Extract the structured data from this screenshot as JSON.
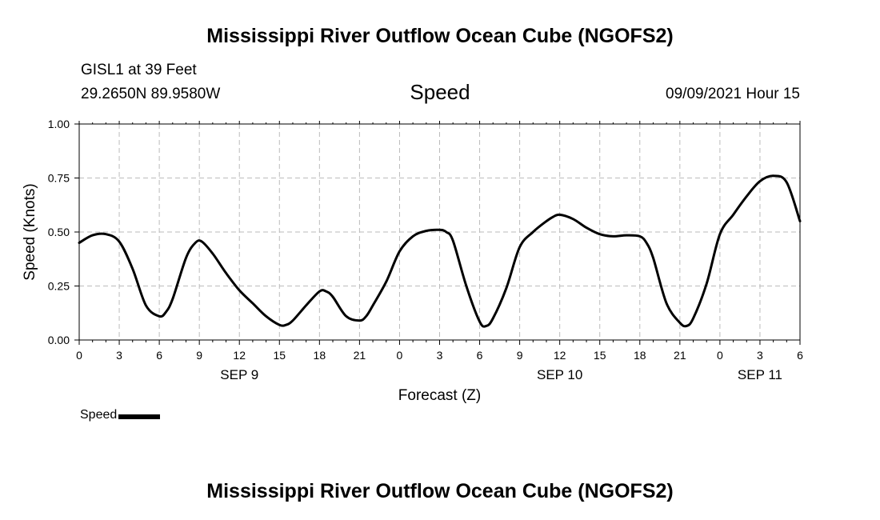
{
  "header": {
    "title": "Mississippi River Outflow Ocean Cube (NGOFS2)",
    "station": "GISL1 at 39 Feet",
    "coordinates": "29.2650N  89.9580W",
    "panel_title": "Speed",
    "datetime": "09/09/2021 Hour 15"
  },
  "footer": {
    "title": "Mississippi River Outflow Ocean Cube (NGOFS2)"
  },
  "legend": {
    "label": "Speed",
    "color": "#000000"
  },
  "chart_data": {
    "type": "line",
    "title": "Speed",
    "xlabel": "Forecast (Z)",
    "ylabel": "Speed (Knots)",
    "xlim": [
      0,
      54
    ],
    "ylim": [
      0,
      1
    ],
    "grid": true,
    "x_tick_values": [
      0,
      3,
      6,
      9,
      12,
      15,
      18,
      21,
      24,
      27,
      30,
      33,
      36,
      39,
      42,
      45,
      48,
      51,
      54
    ],
    "x_tick_labels": [
      "0",
      "3",
      "6",
      "9",
      "12",
      "15",
      "18",
      "21",
      "0",
      "3",
      "6",
      "9",
      "12",
      "15",
      "18",
      "21",
      "0",
      "3",
      "6"
    ],
    "y_tick_values": [
      0,
      0.25,
      0.5,
      0.75,
      1.0
    ],
    "y_tick_labels": [
      "0.00",
      "0.25",
      "0.50",
      "0.75",
      "1.00"
    ],
    "day_labels": [
      {
        "label": "SEP 9",
        "hour": 12
      },
      {
        "label": "SEP 10",
        "hour": 36
      },
      {
        "label": "SEP 11",
        "hour": 51
      }
    ],
    "series": [
      {
        "name": "Speed",
        "color": "#000000",
        "x": [
          0,
          1,
          2,
          3,
          4,
          5,
          6,
          6.5,
          7,
          8,
          8.7,
          9.2,
          10,
          11,
          12,
          13,
          14,
          15,
          15.5,
          16,
          17,
          18,
          18.5,
          19,
          20,
          21,
          21.5,
          22,
          23,
          24,
          25,
          26,
          27,
          27.5,
          28,
          29,
          30,
          30.5,
          31,
          32,
          33,
          34,
          35,
          35.5,
          36,
          37,
          38,
          39,
          40,
          41,
          42,
          42.5,
          43,
          44,
          45,
          45.5,
          46,
          47,
          48,
          49,
          50,
          51,
          52,
          53,
          54
        ],
        "values": [
          0.45,
          0.485,
          0.49,
          0.455,
          0.33,
          0.16,
          0.11,
          0.13,
          0.19,
          0.38,
          0.45,
          0.455,
          0.4,
          0.31,
          0.23,
          0.17,
          0.11,
          0.07,
          0.07,
          0.09,
          0.16,
          0.225,
          0.225,
          0.2,
          0.11,
          0.09,
          0.11,
          0.16,
          0.27,
          0.41,
          0.48,
          0.505,
          0.51,
          0.5,
          0.46,
          0.25,
          0.085,
          0.065,
          0.1,
          0.24,
          0.43,
          0.5,
          0.55,
          0.57,
          0.58,
          0.56,
          0.52,
          0.49,
          0.48,
          0.485,
          0.48,
          0.45,
          0.38,
          0.17,
          0.08,
          0.065,
          0.1,
          0.26,
          0.49,
          0.58,
          0.665,
          0.735,
          0.76,
          0.73,
          0.55
        ]
      }
    ]
  }
}
